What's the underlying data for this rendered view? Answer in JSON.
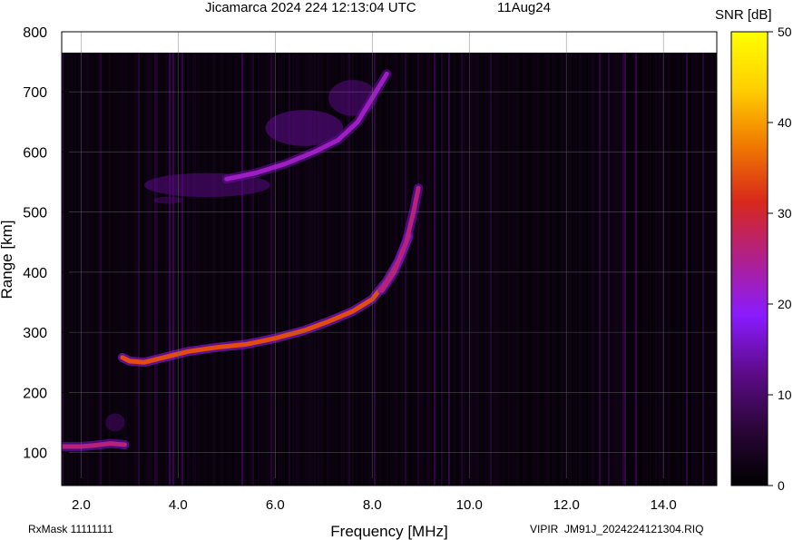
{
  "header": {
    "title": "Jicamarca 2024 224 12:13:04 UTC",
    "date": "11Aug24"
  },
  "footer": {
    "rxmask": "RxMask 11111111",
    "instrument": "VIPIR",
    "filename": "JM91J_2024224121304.RIQ"
  },
  "colorbar": {
    "label": "SNR [dB]",
    "min": 0,
    "max": 50,
    "ticks": [
      "0",
      "10",
      "20",
      "30",
      "40",
      "50"
    ],
    "stops": [
      "#000000",
      "#2a0638",
      "#5e0b8a",
      "#8a1bff",
      "#b0208c",
      "#d8281c",
      "#f07a00",
      "#ffd000",
      "#ffff00"
    ]
  },
  "chart_data": {
    "type": "heatmap",
    "title": "Jicamarca 2024 224 12:13:04 UTC",
    "xlabel": "Frequency [MHz]",
    "ylabel": "Range [km]",
    "xlim": [
      1.6,
      15.1
    ],
    "ylim": [
      45,
      800
    ],
    "xticks": [
      "2.0",
      "4.0",
      "6.0",
      "8.0",
      "10.0",
      "12.0",
      "14.0"
    ],
    "yticks": [
      "100",
      "200",
      "300",
      "400",
      "500",
      "600",
      "700",
      "800"
    ],
    "zlabel": "SNR [dB]",
    "zlim": [
      0,
      50
    ],
    "grid": true,
    "traces": [
      {
        "layer": "E",
        "points": [
          [
            1.6,
            110
          ],
          [
            2.0,
            110
          ],
          [
            2.3,
            112
          ],
          [
            2.6,
            115
          ],
          [
            2.9,
            113
          ]
        ],
        "snr": 26
      },
      {
        "layer": "F-main",
        "points": [
          [
            2.85,
            258
          ],
          [
            3.0,
            252
          ],
          [
            3.3,
            250
          ],
          [
            3.7,
            258
          ],
          [
            4.2,
            268
          ],
          [
            4.8,
            275
          ],
          [
            5.4,
            280
          ],
          [
            6.0,
            290
          ],
          [
            6.6,
            303
          ],
          [
            7.1,
            318
          ],
          [
            7.6,
            335
          ],
          [
            8.0,
            355
          ],
          [
            8.3,
            385
          ],
          [
            8.55,
            420
          ],
          [
            8.75,
            460
          ]
        ],
        "snr": 34
      },
      {
        "layer": "F-o-echo",
        "points": [
          [
            8.2,
            370
          ],
          [
            8.45,
            400
          ],
          [
            8.7,
            450
          ],
          [
            8.85,
            500
          ],
          [
            8.95,
            540
          ]
        ],
        "snr": 26
      },
      {
        "layer": "F-2hop",
        "points": [
          [
            5.0,
            555
          ],
          [
            5.6,
            565
          ],
          [
            6.2,
            580
          ],
          [
            6.8,
            600
          ],
          [
            7.3,
            620
          ],
          [
            7.7,
            650
          ],
          [
            8.0,
            690
          ],
          [
            8.3,
            730
          ]
        ],
        "snr": 22
      }
    ]
  }
}
